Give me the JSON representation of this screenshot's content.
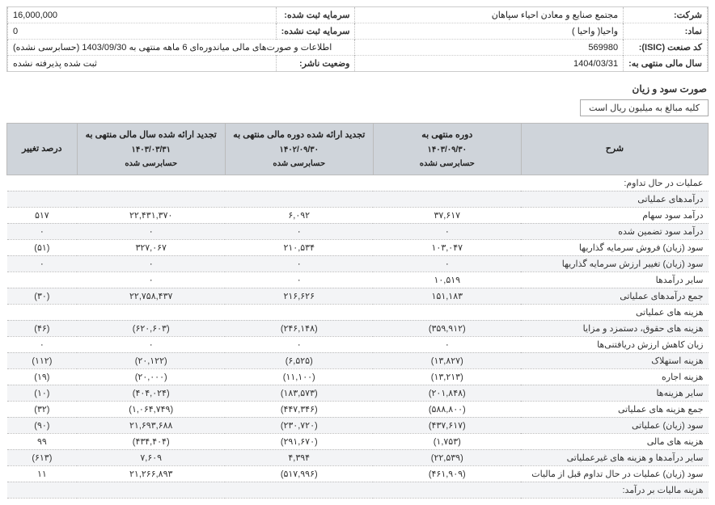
{
  "header": {
    "company_label": "شرکت:",
    "company_value": "مجتمع صنایع و معادن احیاء سپاهان",
    "capital_label": "سرمایه ثبت شده:",
    "capital_value": "16,000,000",
    "symbol_label": "نماد:",
    "symbol_value": "واحیا( واحیا )",
    "unreg_capital_label": "سرمایه ثبت نشده:",
    "unreg_capital_value": "0",
    "isic_label": "کد صنعت (ISIC):",
    "isic_value": "569980",
    "report_label": "اطلاعات و صورت‌های مالی میاندوره‌ای 6 ماهه منتهی به 1403/09/30 (حسابرسی نشده)",
    "fy_label": "سال مالی منتهی به:",
    "fy_value": "1404/03/31",
    "status_label": "وضعیت ناشر:",
    "status_value": "ثبت شده پذیرفته نشده"
  },
  "section_title": "صورت سود و زیان",
  "note": "کلیه مبالغ به میلیون ریال است",
  "columns": {
    "desc": "شرح",
    "c1_line1": "دوره منتهی به",
    "c1_line2": "۱۴۰۳/۰۹/۳۰",
    "c1_line3": "حسابرسی نشده",
    "c2_line1": "تجدید ارائه شده دوره مالی منتهی به",
    "c2_line2": "۱۴۰۲/۰۹/۳۰",
    "c2_line3": "حسابرسی شده",
    "c3_line1": "تجدید ارائه شده سال مالی منتهی به",
    "c3_line2": "۱۴۰۳/۰۳/۳۱",
    "c3_line3": "حسابرسی شده",
    "pct": "درصد تغییر"
  },
  "rows": [
    {
      "desc": "عملیات در حال تداوم:",
      "c1": "",
      "c2": "",
      "c3": "",
      "pct": ""
    },
    {
      "desc": "درآمدهای عملیاتی",
      "c1": "",
      "c2": "",
      "c3": "",
      "pct": ""
    },
    {
      "desc": "درآمد سود سهام",
      "c1": "۳۷,۶۱۷",
      "c2": "۶,۰۹۲",
      "c3": "۲۲,۴۳۱,۳۷۰",
      "pct": "۵۱۷"
    },
    {
      "desc": "درآمد سود تضمین شده",
      "c1": "۰",
      "c2": "۰",
      "c3": "۰",
      "pct": "۰"
    },
    {
      "desc": "سود (زیان) فروش سرمایه گذاریها",
      "c1": "۱۰۳,۰۴۷",
      "c2": "۲۱۰,۵۳۴",
      "c3": "۳۲۷,۰۶۷",
      "pct": "(۵۱)"
    },
    {
      "desc": "سود (زیان) تغییر ارزش سرمایه گذاریها",
      "c1": "۰",
      "c2": "۰",
      "c3": "۰",
      "pct": "۰"
    },
    {
      "desc": "سایر درآمدها",
      "c1": "۱۰,۵۱۹",
      "c2": "۰",
      "c3": "۰",
      "pct": ""
    },
    {
      "desc": "جمع درآمدهای عملیاتی",
      "c1": "۱۵۱,۱۸۳",
      "c2": "۲۱۶,۶۲۶",
      "c3": "۲۲,۷۵۸,۴۳۷",
      "pct": "(۳۰)"
    },
    {
      "desc": "هزینه های عملیاتی",
      "c1": "",
      "c2": "",
      "c3": "",
      "pct": ""
    },
    {
      "desc": "هزینه های حقوق، دستمزد و مزایا",
      "c1": "(۳۵۹,۹۱۲)",
      "c2": "(۲۴۶,۱۴۸)",
      "c3": "(۶۲۰,۶۰۳)",
      "pct": "(۴۶)"
    },
    {
      "desc": "زیان کاهش ارزش دریافتنی‌ها",
      "c1": "۰",
      "c2": "۰",
      "c3": "۰",
      "pct": "۰"
    },
    {
      "desc": "هزینه استهلاک",
      "c1": "(۱۳,۸۲۷)",
      "c2": "(۶,۵۲۵)",
      "c3": "(۲۰,۱۲۲)",
      "pct": "(۱۱۲)"
    },
    {
      "desc": "هزینه اجاره",
      "c1": "(۱۳,۲۱۳)",
      "c2": "(۱۱,۱۰۰)",
      "c3": "(۲۰,۰۰۰)",
      "pct": "(۱۹)"
    },
    {
      "desc": "سایر هزینه‌ها",
      "c1": "(۲۰۱,۸۴۸)",
      "c2": "(۱۸۳,۵۷۳)",
      "c3": "(۴۰۴,۰۲۴)",
      "pct": "(۱۰)"
    },
    {
      "desc": "جمع هزینه های عملیاتی",
      "c1": "(۵۸۸,۸۰۰)",
      "c2": "(۴۴۷,۳۴۶)",
      "c3": "(۱,۰۶۴,۷۴۹)",
      "pct": "(۳۲)"
    },
    {
      "desc": "سود (زیان) عملیاتی",
      "c1": "(۴۳۷,۶۱۷)",
      "c2": "(۲۳۰,۷۲۰)",
      "c3": "۲۱,۶۹۳,۶۸۸",
      "pct": "(۹۰)"
    },
    {
      "desc": "هزینه های مالی",
      "c1": "(۱,۷۵۳)",
      "c2": "(۲۹۱,۶۷۰)",
      "c3": "(۴۳۴,۴۰۴)",
      "pct": "۹۹"
    },
    {
      "desc": "سایر درآمدها و هزینه های غیرعملیاتی",
      "c1": "(۲۲,۵۳۹)",
      "c2": "۴,۳۹۴",
      "c3": "۷,۶۰۹",
      "pct": "(۶۱۳)"
    },
    {
      "desc": "سود (زیان) عملیات در حال تداوم قبل از مالیات",
      "c1": "(۴۶۱,۹۰۹)",
      "c2": "(۵۱۷,۹۹۶)",
      "c3": "۲۱,۲۶۶,۸۹۳",
      "pct": "۱۱"
    },
    {
      "desc": "هزینه مالیات بر درآمد:",
      "c1": "",
      "c2": "",
      "c3": "",
      "pct": ""
    }
  ]
}
